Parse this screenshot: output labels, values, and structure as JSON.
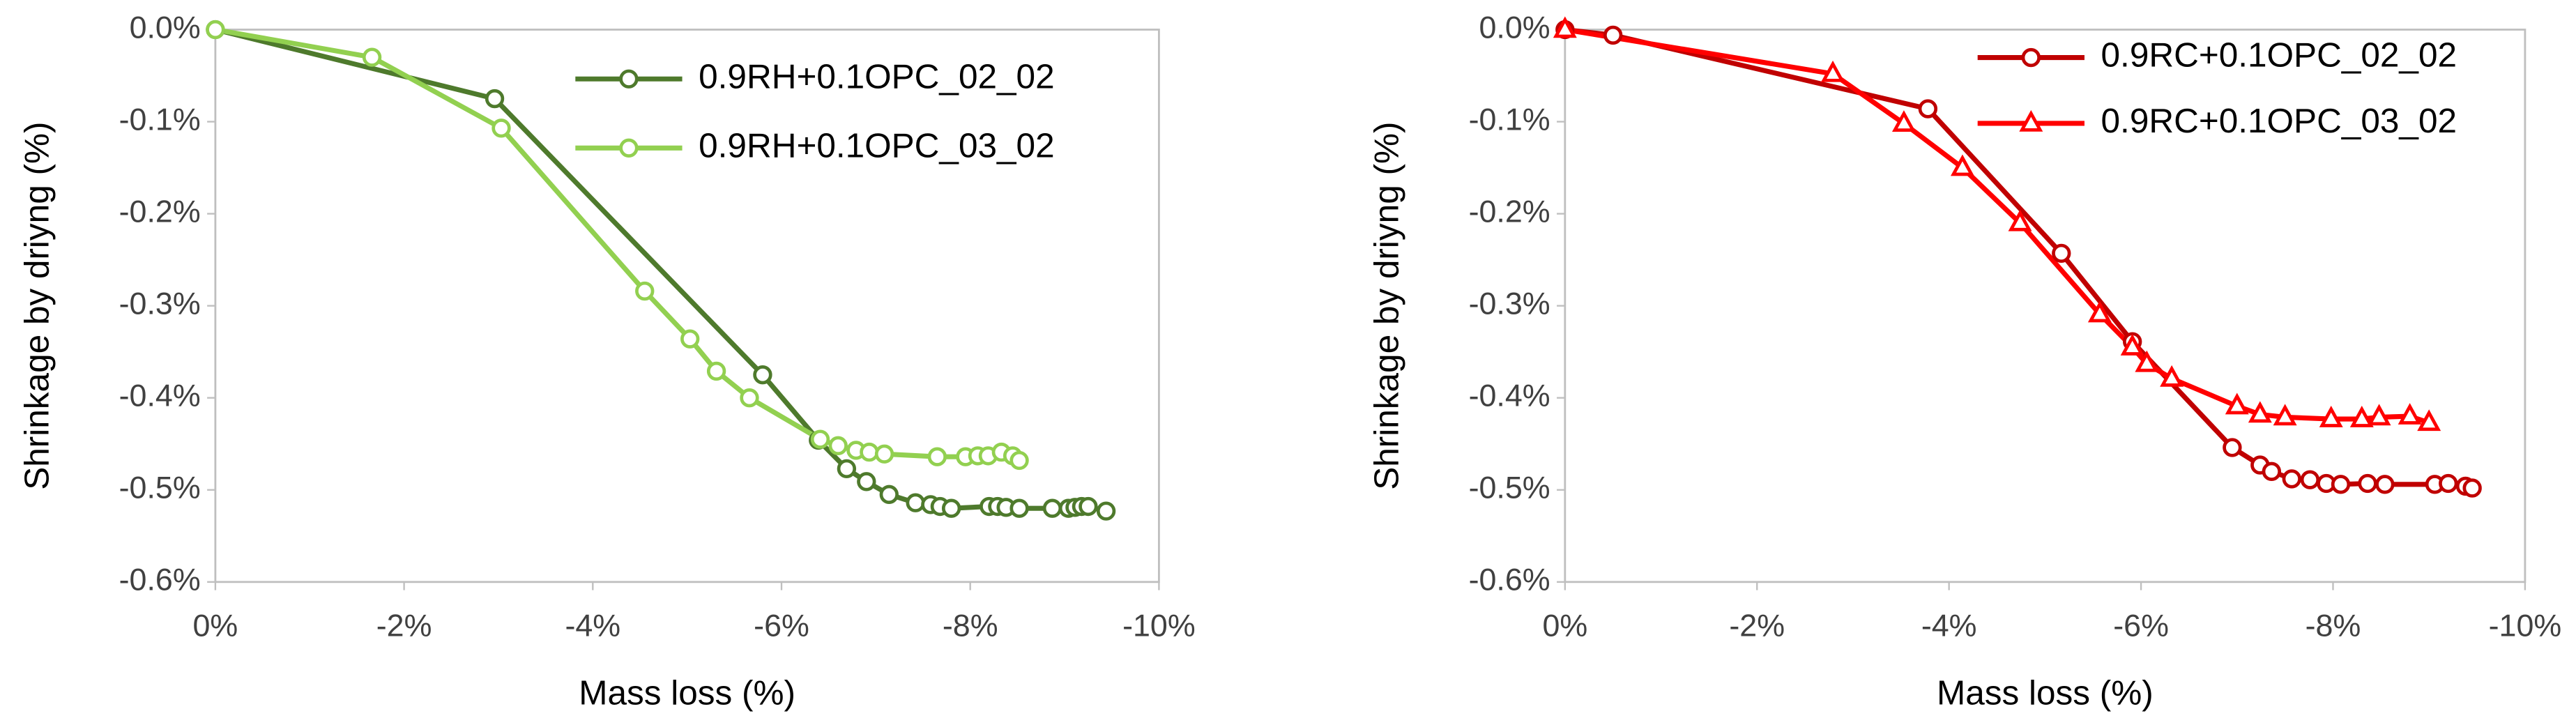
{
  "chart_data": [
    {
      "type": "line",
      "x_label": "Mass loss (%)",
      "y_label": "Shrinkage by driyng (%)",
      "xlim": [
        0,
        -10
      ],
      "ylim": [
        0,
        -0.6
      ],
      "xticks": [
        {
          "value": 0,
          "label": "0%"
        },
        {
          "value": -2,
          "label": "-2%"
        },
        {
          "value": -4,
          "label": "-4%"
        },
        {
          "value": -6,
          "label": "-6%"
        },
        {
          "value": -8,
          "label": "-8%"
        },
        {
          "value": -10,
          "label": "-10%"
        }
      ],
      "yticks": [
        {
          "value": 0,
          "label": "0.0%"
        },
        {
          "value": -0.1,
          "label": "-0.1%"
        },
        {
          "value": -0.2,
          "label": "-0.2%"
        },
        {
          "value": -0.3,
          "label": "-0.3%"
        },
        {
          "value": -0.4,
          "label": "-0.4%"
        },
        {
          "value": -0.5,
          "label": "-0.5%"
        },
        {
          "value": -0.6,
          "label": "-0.6%"
        }
      ],
      "grid": false,
      "legend": "upper right",
      "series": [
        {
          "name": "0.9RH+0.1OPC_02_02",
          "color": "#4e7a2c",
          "marker": "circle",
          "x": [
            0,
            -2.96,
            -5.8,
            -6.39,
            -6.69,
            -6.9,
            -7.14,
            -7.42,
            -7.58,
            -7.68,
            -7.8,
            -8.2,
            -8.29,
            -8.38,
            -8.52,
            -8.87,
            -9.04,
            -9.11,
            -9.18,
            -9.25,
            -9.44
          ],
          "values": [
            0,
            -0.075,
            -0.375,
            -0.446,
            -0.477,
            -0.491,
            -0.505,
            -0.514,
            -0.516,
            -0.518,
            -0.52,
            -0.518,
            -0.518,
            -0.519,
            -0.52,
            -0.52,
            -0.52,
            -0.519,
            -0.518,
            -0.518,
            -0.523
          ]
        },
        {
          "name": "0.9RH+0.1OPC_03_02",
          "color": "#92d050",
          "marker": "circle",
          "x": [
            0,
            -1.66,
            -3.03,
            -4.55,
            -5.03,
            -5.31,
            -5.66,
            -6.41,
            -6.6,
            -6.79,
            -6.93,
            -7.09,
            -7.65,
            -7.95,
            -8.08,
            -8.19,
            -8.33,
            -8.45,
            -8.52
          ],
          "values": [
            0,
            -0.03,
            -0.107,
            -0.284,
            -0.336,
            -0.371,
            -0.4,
            -0.445,
            -0.452,
            -0.457,
            -0.459,
            -0.461,
            -0.464,
            -0.464,
            -0.463,
            -0.463,
            -0.459,
            -0.463,
            -0.468
          ]
        }
      ]
    },
    {
      "type": "line",
      "x_label": "Mass loss (%)",
      "y_label": "Shrinkage by driyng (%)",
      "xlim": [
        0,
        -10
      ],
      "ylim": [
        0,
        -0.6
      ],
      "xticks": [
        {
          "value": 0,
          "label": "0%"
        },
        {
          "value": -2,
          "label": "-2%"
        },
        {
          "value": -4,
          "label": "-4%"
        },
        {
          "value": -6,
          "label": "-6%"
        },
        {
          "value": -8,
          "label": "-8%"
        },
        {
          "value": -10,
          "label": "-10%"
        }
      ],
      "yticks": [
        {
          "value": 0,
          "label": "0.0%"
        },
        {
          "value": -0.1,
          "label": "-0.1%"
        },
        {
          "value": -0.2,
          "label": "-0.2%"
        },
        {
          "value": -0.3,
          "label": "-0.3%"
        },
        {
          "value": -0.4,
          "label": "-0.4%"
        },
        {
          "value": -0.5,
          "label": "-0.5%"
        },
        {
          "value": -0.6,
          "label": "-0.6%"
        }
      ],
      "grid": false,
      "legend": "upper right",
      "series": [
        {
          "name": "0.9RC+0.1OPC_02_02",
          "color": "#c00000",
          "marker": "circle",
          "x": [
            0,
            -0.5,
            -3.78,
            -5.17,
            -5.91,
            -6.95,
            -7.24,
            -7.36,
            -7.57,
            -7.76,
            -7.93,
            -8.08,
            -8.36,
            -8.54,
            -9.06,
            -9.2,
            -9.38,
            -9.45
          ],
          "values": [
            0,
            -0.006,
            -0.086,
            -0.243,
            -0.339,
            -0.454,
            -0.473,
            -0.48,
            -0.488,
            -0.489,
            -0.493,
            -0.494,
            -0.493,
            -0.494,
            -0.494,
            -0.493,
            -0.496,
            -0.498
          ]
        },
        {
          "name": "0.9RC+0.1OPC_03_02",
          "color": "#ff0000",
          "marker": "triangle",
          "x": [
            0,
            -2.79,
            -3.53,
            -4.14,
            -4.74,
            -5.57,
            -5.91,
            -6.06,
            -6.32,
            -7.0,
            -7.24,
            -7.5,
            -7.98,
            -8.3,
            -8.48,
            -8.8,
            -9.0
          ],
          "values": [
            0,
            -0.048,
            -0.102,
            -0.15,
            -0.21,
            -0.309,
            -0.345,
            -0.363,
            -0.379,
            -0.409,
            -0.418,
            -0.421,
            -0.423,
            -0.423,
            -0.421,
            -0.42,
            -0.427
          ]
        }
      ]
    }
  ]
}
